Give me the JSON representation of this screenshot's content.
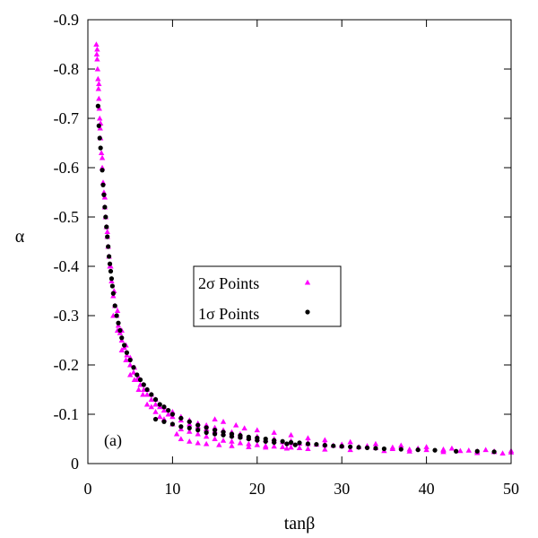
{
  "chart_data": {
    "type": "scatter",
    "xlabel": "tanβ",
    "ylabel": "α",
    "panel_label": "(a)",
    "xlim": [
      0,
      50
    ],
    "ylim": [
      0,
      -0.9
    ],
    "y_axis_inverted": true,
    "xticks": [
      0,
      10,
      20,
      30,
      40,
      50
    ],
    "yticks": [
      0,
      -0.1,
      -0.2,
      -0.3,
      -0.4,
      -0.5,
      -0.6,
      -0.7,
      -0.8,
      -0.9
    ],
    "xtick_labels": [
      "0",
      "10",
      "20",
      "30",
      "40",
      "50"
    ],
    "ytick_labels": [
      "0",
      "-0.1",
      "-0.2",
      "-0.3",
      "-0.4",
      "-0.5",
      "-0.6",
      "-0.7",
      "-0.8",
      "-0.9"
    ],
    "grid": false,
    "legend_position": "center",
    "series": [
      {
        "name": "2σ Points",
        "marker": "triangle",
        "color": "#ff00ff",
        "points": [
          [
            1.0,
            -0.85
          ],
          [
            1.05,
            -0.83
          ],
          [
            1.1,
            -0.82
          ],
          [
            1.15,
            -0.8
          ],
          [
            1.2,
            -0.78
          ],
          [
            1.25,
            -0.76
          ],
          [
            1.3,
            -0.74
          ],
          [
            1.35,
            -0.72
          ],
          [
            1.4,
            -0.7
          ],
          [
            1.45,
            -0.68
          ],
          [
            1.5,
            -0.66
          ],
          [
            1.6,
            -0.63
          ],
          [
            1.7,
            -0.6
          ],
          [
            1.8,
            -0.57
          ],
          [
            1.9,
            -0.55
          ],
          [
            2.0,
            -0.52
          ],
          [
            2.1,
            -0.5
          ],
          [
            2.2,
            -0.48
          ],
          [
            2.3,
            -0.46
          ],
          [
            2.4,
            -0.44
          ],
          [
            2.5,
            -0.42
          ],
          [
            2.6,
            -0.4
          ],
          [
            2.8,
            -0.37
          ],
          [
            3.0,
            -0.34
          ],
          [
            3.2,
            -0.32
          ],
          [
            3.4,
            -0.3
          ],
          [
            3.6,
            -0.28
          ],
          [
            3.8,
            -0.265
          ],
          [
            4.0,
            -0.25
          ],
          [
            4.3,
            -0.235
          ],
          [
            4.6,
            -0.22
          ],
          [
            5.0,
            -0.2
          ],
          [
            5.4,
            -0.185
          ],
          [
            5.8,
            -0.17
          ],
          [
            6.2,
            -0.16
          ],
          [
            6.6,
            -0.15
          ],
          [
            7.0,
            -0.14
          ],
          [
            7.5,
            -0.13
          ],
          [
            8.0,
            -0.12
          ],
          [
            8.5,
            -0.115
          ],
          [
            9.0,
            -0.108
          ],
          [
            9.5,
            -0.1
          ],
          [
            10.0,
            -0.095
          ],
          [
            11.0,
            -0.088
          ],
          [
            12.0,
            -0.08
          ],
          [
            13.0,
            -0.075
          ],
          [
            14.0,
            -0.07
          ],
          [
            15.0,
            -0.066
          ],
          [
            16.0,
            -0.062
          ],
          [
            17.0,
            -0.058
          ],
          [
            18.0,
            -0.055
          ],
          [
            19.0,
            -0.052
          ],
          [
            20.0,
            -0.05
          ],
          [
            21.0,
            -0.048
          ],
          [
            22.0,
            -0.046
          ],
          [
            23.0,
            -0.044
          ],
          [
            24.0,
            -0.042
          ],
          [
            25.0,
            -0.041
          ],
          [
            26.0,
            -0.04
          ],
          [
            27.0,
            -0.039
          ],
          [
            28.0,
            -0.038
          ],
          [
            29.0,
            -0.037
          ],
          [
            30.0,
            -0.036
          ],
          [
            32.0,
            -0.034
          ],
          [
            34.0,
            -0.032
          ],
          [
            36.0,
            -0.03
          ],
          [
            38.0,
            -0.029
          ],
          [
            40.0,
            -0.028
          ],
          [
            42.0,
            -0.027
          ],
          [
            44.0,
            -0.026
          ],
          [
            46.0,
            -0.025
          ],
          [
            48.0,
            -0.024
          ],
          [
            50.0,
            -0.023
          ],
          [
            1.1,
            -0.84
          ],
          [
            1.3,
            -0.77
          ],
          [
            1.5,
            -0.69
          ],
          [
            1.7,
            -0.62
          ],
          [
            2.0,
            -0.54
          ],
          [
            2.3,
            -0.47
          ],
          [
            2.7,
            -0.4
          ],
          [
            3.1,
            -0.35
          ],
          [
            3.5,
            -0.31
          ],
          [
            4.0,
            -0.27
          ],
          [
            4.5,
            -0.24
          ],
          [
            5.0,
            -0.215
          ],
          [
            5.5,
            -0.195
          ],
          [
            6.0,
            -0.175
          ],
          [
            6.5,
            -0.16
          ],
          [
            7.0,
            -0.15
          ],
          [
            7.5,
            -0.14
          ],
          [
            8.0,
            -0.13
          ],
          [
            9.0,
            -0.115
          ],
          [
            10.0,
            -0.105
          ],
          [
            11.0,
            -0.095
          ],
          [
            12.0,
            -0.088
          ],
          [
            13.0,
            -0.082
          ],
          [
            14.0,
            -0.078
          ],
          [
            15.0,
            -0.073
          ],
          [
            16.0,
            -0.068
          ],
          [
            17.0,
            -0.064
          ],
          [
            18.0,
            -0.06
          ],
          [
            20.0,
            -0.055
          ],
          [
            22.0,
            -0.05
          ],
          [
            24.0,
            -0.046
          ],
          [
            26.0,
            -0.043
          ],
          [
            28.0,
            -0.041
          ],
          [
            30.0,
            -0.039
          ],
          [
            33.0,
            -0.036
          ],
          [
            36.0,
            -0.033
          ],
          [
            39.0,
            -0.031
          ],
          [
            42.0,
            -0.029
          ],
          [
            45.0,
            -0.027
          ],
          [
            48.0,
            -0.025
          ],
          [
            3.0,
            -0.3
          ],
          [
            3.5,
            -0.27
          ],
          [
            4.0,
            -0.23
          ],
          [
            4.5,
            -0.21
          ],
          [
            5.0,
            -0.18
          ],
          [
            5.5,
            -0.17
          ],
          [
            6.0,
            -0.15
          ],
          [
            6.5,
            -0.14
          ],
          [
            7.0,
            -0.12
          ],
          [
            7.5,
            -0.115
          ],
          [
            8.0,
            -0.105
          ],
          [
            8.5,
            -0.095
          ],
          [
            9.0,
            -0.09
          ],
          [
            10.0,
            -0.08
          ],
          [
            11.0,
            -0.07
          ],
          [
            12.0,
            -0.065
          ],
          [
            13.0,
            -0.06
          ],
          [
            14.0,
            -0.055
          ],
          [
            15.0,
            -0.05
          ],
          [
            16.0,
            -0.047
          ],
          [
            17.0,
            -0.045
          ],
          [
            18.0,
            -0.042
          ],
          [
            19.0,
            -0.04
          ],
          [
            20.0,
            -0.038
          ],
          [
            21.0,
            -0.036
          ],
          [
            22.0,
            -0.035
          ],
          [
            23.0,
            -0.034
          ],
          [
            24.0,
            -0.033
          ],
          [
            25.0,
            -0.032
          ],
          [
            10.5,
            -0.06
          ],
          [
            11.0,
            -0.05
          ],
          [
            12.0,
            -0.045
          ],
          [
            13.0,
            -0.042
          ],
          [
            14.0,
            -0.04
          ],
          [
            15.5,
            -0.038
          ],
          [
            17.0,
            -0.036
          ],
          [
            19.0,
            -0.034
          ],
          [
            21.0,
            -0.033
          ],
          [
            23.5,
            -0.031
          ],
          [
            26.0,
            -0.03
          ],
          [
            28.0,
            -0.029
          ],
          [
            31.0,
            -0.028
          ],
          [
            35.0,
            -0.026
          ],
          [
            38.0,
            -0.025
          ],
          [
            42.0,
            -0.024
          ],
          [
            46.0,
            -0.022
          ],
          [
            49.0,
            -0.021
          ],
          [
            15.0,
            -0.09
          ],
          [
            16.0,
            -0.085
          ],
          [
            17.5,
            -0.078
          ],
          [
            18.5,
            -0.072
          ],
          [
            20.0,
            -0.068
          ],
          [
            22.0,
            -0.063
          ],
          [
            24.0,
            -0.058
          ],
          [
            26.0,
            -0.052
          ],
          [
            28.0,
            -0.048
          ],
          [
            31.0,
            -0.044
          ],
          [
            34.0,
            -0.04
          ],
          [
            37.0,
            -0.037
          ],
          [
            40.0,
            -0.034
          ],
          [
            43.0,
            -0.031
          ],
          [
            47.0,
            -0.028
          ],
          [
            50.0,
            -0.026
          ]
        ]
      },
      {
        "name": "1σ Points",
        "marker": "circle",
        "color": "#000000",
        "points": [
          [
            1.2,
            -0.725
          ],
          [
            1.3,
            -0.685
          ],
          [
            1.4,
            -0.66
          ],
          [
            1.5,
            -0.64
          ],
          [
            1.7,
            -0.595
          ],
          [
            1.8,
            -0.565
          ],
          [
            1.9,
            -0.545
          ],
          [
            2.0,
            -0.52
          ],
          [
            2.1,
            -0.5
          ],
          [
            2.2,
            -0.48
          ],
          [
            2.3,
            -0.46
          ],
          [
            2.4,
            -0.44
          ],
          [
            2.5,
            -0.42
          ],
          [
            2.6,
            -0.405
          ],
          [
            2.7,
            -0.39
          ],
          [
            2.8,
            -0.375
          ],
          [
            2.9,
            -0.36
          ],
          [
            3.0,
            -0.345
          ],
          [
            3.2,
            -0.32
          ],
          [
            3.4,
            -0.3
          ],
          [
            3.6,
            -0.285
          ],
          [
            3.8,
            -0.27
          ],
          [
            4.0,
            -0.255
          ],
          [
            4.3,
            -0.24
          ],
          [
            4.6,
            -0.225
          ],
          [
            5.0,
            -0.21
          ],
          [
            5.4,
            -0.195
          ],
          [
            5.8,
            -0.18
          ],
          [
            6.2,
            -0.17
          ],
          [
            6.6,
            -0.16
          ],
          [
            7.0,
            -0.15
          ],
          [
            7.5,
            -0.14
          ],
          [
            8.0,
            -0.13
          ],
          [
            8.5,
            -0.12
          ],
          [
            9.0,
            -0.115
          ],
          [
            9.5,
            -0.108
          ],
          [
            10.0,
            -0.1
          ],
          [
            11.0,
            -0.092
          ],
          [
            12.0,
            -0.085
          ],
          [
            13.0,
            -0.078
          ],
          [
            14.0,
            -0.073
          ],
          [
            15.0,
            -0.068
          ],
          [
            16.0,
            -0.064
          ],
          [
            17.0,
            -0.06
          ],
          [
            18.0,
            -0.057
          ],
          [
            19.0,
            -0.054
          ],
          [
            20.0,
            -0.052
          ],
          [
            21.0,
            -0.05
          ],
          [
            22.0,
            -0.047
          ],
          [
            23.0,
            -0.045
          ],
          [
            23.5,
            -0.04
          ],
          [
            24.0,
            -0.043
          ],
          [
            24.5,
            -0.038
          ],
          [
            25.0,
            -0.042
          ],
          [
            26.0,
            -0.04
          ],
          [
            27.0,
            -0.039
          ],
          [
            28.0,
            -0.037
          ],
          [
            29.0,
            -0.036
          ],
          [
            30.0,
            -0.035
          ],
          [
            31.0,
            -0.034
          ],
          [
            32.0,
            -0.033
          ],
          [
            33.0,
            -0.032
          ],
          [
            34.0,
            -0.031
          ],
          [
            35.0,
            -0.03
          ],
          [
            37.0,
            -0.029
          ],
          [
            39.0,
            -0.028
          ],
          [
            41.0,
            -0.027
          ],
          [
            43.5,
            -0.025
          ],
          [
            46.0,
            -0.025
          ],
          [
            48.0,
            -0.024
          ],
          [
            8.0,
            -0.09
          ],
          [
            9.0,
            -0.085
          ],
          [
            10.0,
            -0.08
          ],
          [
            11.0,
            -0.075
          ],
          [
            12.0,
            -0.072
          ],
          [
            13.0,
            -0.068
          ],
          [
            14.0,
            -0.063
          ],
          [
            15.0,
            -0.06
          ],
          [
            16.0,
            -0.058
          ],
          [
            17.0,
            -0.055
          ],
          [
            18.0,
            -0.053
          ],
          [
            19.0,
            -0.05
          ],
          [
            20.0,
            -0.047
          ],
          [
            21.0,
            -0.045
          ],
          [
            22.0,
            -0.043
          ]
        ]
      }
    ]
  }
}
